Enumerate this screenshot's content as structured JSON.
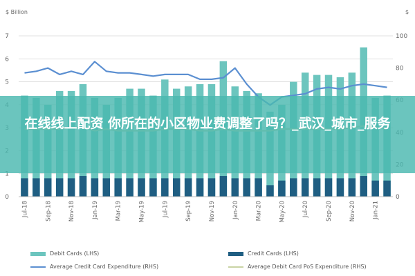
{
  "chart_data": {
    "type": "bar",
    "left_axis_label": "$ Billion",
    "right_axis_label": "$",
    "left_ylim": [
      0,
      7
    ],
    "right_ylim": [
      0,
      100
    ],
    "left_ticks": [
      "0",
      "1",
      "2",
      "3",
      "4",
      "5",
      "6",
      "7"
    ],
    "right_ticks": [
      "0",
      "20",
      "40",
      "60",
      "80",
      "100"
    ],
    "categories": [
      "Jul-18",
      "Aug-18",
      "Sep-18",
      "Oct-18",
      "Nov-18",
      "Dec-18",
      "Jan-19",
      "Feb-19",
      "Mar-19",
      "Apr-19",
      "May-19",
      "Jun-19",
      "Jul-19",
      "Aug-19",
      "Sep-19",
      "Oct-19",
      "Nov-19",
      "Dec-19",
      "Jan-20",
      "Feb-20",
      "Mar-20",
      "Apr-20",
      "May-20",
      "Jun-20",
      "Jul-20",
      "Aug-20",
      "Sep-20",
      "Oct-20",
      "Nov-20",
      "Dec-20",
      "Jan-21",
      "Feb-21"
    ],
    "x_tick_labels": [
      "Jul-18",
      "",
      "Sep-18",
      "",
      "Nov-18",
      "",
      "Jan-19",
      "",
      "Mar-19",
      "",
      "May-19",
      "",
      "Jul-19",
      "",
      "Sep-19",
      "",
      "Nov-19",
      "",
      "Jan-20",
      "",
      "Mar-20",
      "",
      "May-20",
      "",
      "Jul-20",
      "",
      "Sep-20",
      "",
      "Nov-20",
      "",
      "Jan-21",
      ""
    ],
    "series": [
      {
        "name": "Debit Cards (LHS)",
        "type": "bar",
        "axis": "left",
        "color": "#6cc5be",
        "values": [
          4.4,
          4.3,
          4.0,
          4.6,
          4.6,
          4.9,
          4.3,
          4.0,
          4.3,
          4.7,
          4.7,
          4.4,
          5.1,
          4.7,
          4.8,
          4.9,
          4.9,
          5.9,
          4.8,
          4.6,
          4.5,
          3.7,
          4.0,
          5.0,
          5.4,
          5.3,
          5.3,
          5.2,
          5.4,
          6.5,
          4.3,
          4.4
        ]
      },
      {
        "name": "Credit Cards (LHS)",
        "type": "bar",
        "axis": "left",
        "color": "#1f5e82",
        "values": [
          0.8,
          0.8,
          0.8,
          0.8,
          0.8,
          0.9,
          0.8,
          0.8,
          0.8,
          0.8,
          0.8,
          0.8,
          0.8,
          0.8,
          0.8,
          0.8,
          0.8,
          0.9,
          0.8,
          0.8,
          0.8,
          0.5,
          0.7,
          0.8,
          0.8,
          0.8,
          0.8,
          0.8,
          0.8,
          0.9,
          0.7,
          0.7
        ]
      },
      {
        "name": "Average Credit Card Expenditure (RHS)",
        "type": "line",
        "axis": "right",
        "color": "#5b8fd1",
        "values": [
          77,
          78,
          80,
          76,
          78,
          76,
          84,
          78,
          77,
          77,
          76,
          75,
          76,
          76,
          76,
          73,
          73,
          74,
          80,
          70,
          62,
          57,
          62,
          63,
          64,
          67,
          68,
          67,
          69,
          70,
          69,
          68
        ]
      },
      {
        "name": "Average Debit Card PoS Expenditure (RHS)",
        "type": "line",
        "axis": "right",
        "color": "#c9d3a4",
        "values": [
          42,
          42,
          42,
          42,
          43,
          43,
          41,
          42,
          41,
          41,
          41,
          41,
          42,
          42,
          42,
          41,
          41,
          42,
          41,
          41,
          41,
          41,
          42,
          42,
          42,
          42,
          42,
          42,
          43,
          44,
          43,
          42
        ]
      }
    ]
  },
  "legend": {
    "debit": "Debit Cards (LHS)",
    "credit": "Credit Cards (LHS)",
    "avg_credit": "Average Credit Card Expenditure (RHS)",
    "avg_debit": "Average Debit Card PoS Expenditure (RHS)"
  },
  "banner_text": "在线线上配资 你所在的小区物业费调整了吗？_武汉_城市_服务"
}
